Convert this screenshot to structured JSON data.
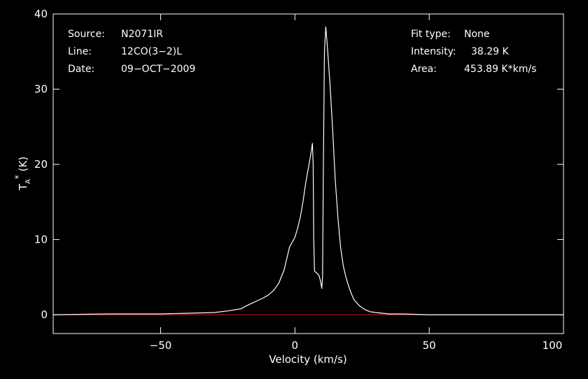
{
  "colors": {
    "background": "#000000",
    "axes": "#ffffff",
    "spectrum": "#ffffff",
    "baseline": "#ff0000"
  },
  "header": {
    "source_label": "Source:",
    "source_value": "N2071IR",
    "line_label": "Line:",
    "line_value": "12CO(3−2)L",
    "date_label": "Date:",
    "date_value": "09−OCT−2009",
    "fit_label": "Fit type:",
    "fit_value": "None",
    "intensity_label": "Intensity:",
    "intensity_value": "38.29 K",
    "area_label": "Area:",
    "area_value": "453.89 K*km/s"
  },
  "chart_data": {
    "type": "line",
    "title": "",
    "xlabel": "Velocity (km/s)",
    "ylabel": "T*A (K)",
    "xlim": [
      -90,
      100
    ],
    "ylim": [
      -2.5,
      40
    ],
    "x_ticks": [
      -50,
      0,
      50,
      100
    ],
    "x_tick_labels": [
      "−50",
      "0",
      "50",
      "100"
    ],
    "y_ticks": [
      0,
      10,
      20,
      30,
      40
    ],
    "y_tick_labels": [
      "0",
      "10",
      "20",
      "30",
      "40"
    ],
    "grid": false,
    "legend": "none",
    "series": [
      {
        "x": [
          -90,
          -70,
          -50,
          -40,
          -30,
          -25,
          -20,
          -18,
          -15,
          -12,
          -10,
          -8,
          -6,
          -4,
          -2,
          0,
          1,
          2,
          3,
          4,
          5,
          6,
          6.5,
          6.8,
          7,
          7.3,
          8,
          9,
          9.5,
          10,
          10.3,
          10.6,
          11,
          11.5,
          12,
          13,
          14,
          15,
          16,
          17,
          18,
          19,
          20,
          21,
          22,
          24,
          26,
          28,
          30,
          35,
          40,
          50,
          70,
          100
        ],
        "values": [
          0,
          0.1,
          0.1,
          0.2,
          0.3,
          0.5,
          0.8,
          1.2,
          1.7,
          2.2,
          2.6,
          3.2,
          4.2,
          6,
          9,
          10.3,
          11.5,
          13,
          15,
          17.5,
          19.5,
          21.5,
          22.8,
          20,
          10,
          5.8,
          5.6,
          5.2,
          4.5,
          3.5,
          5,
          20,
          35,
          38.29,
          36,
          31,
          25,
          18,
          13,
          9,
          6.5,
          5,
          3.8,
          2.8,
          2,
          1.2,
          0.7,
          0.4,
          0.3,
          0.1,
          0.1,
          0,
          0,
          0
        ]
      }
    ],
    "baseline": {
      "y": 0
    }
  }
}
